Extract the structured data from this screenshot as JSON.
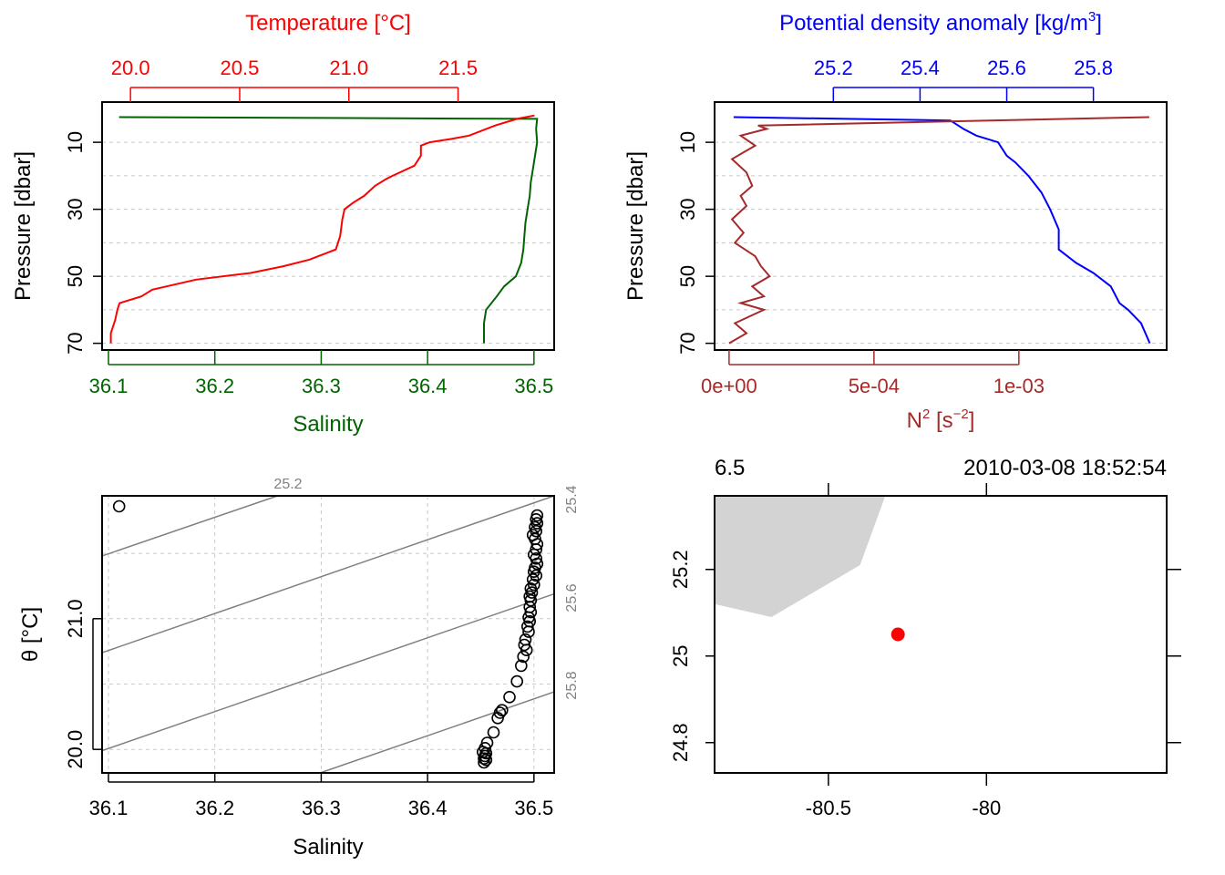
{
  "colors": {
    "temperature": "#ff0000",
    "salinity": "#006400",
    "density": "#0000ff",
    "n2": "#a52a2a",
    "isopycnal": "#808080",
    "land": "#d3d3d3",
    "station": "#ff0000",
    "grid": "#c8c8c8"
  },
  "panel1": {
    "top_label": "Temperature [°C]",
    "bottom_label": "Salinity",
    "left_label": "Pressure [dbar]"
  },
  "panel2": {
    "top_label_main": "Potential density anomaly [kg/m",
    "top_label_sup": "3",
    "top_label_end": "]",
    "bottom_label_main": "N",
    "bottom_label_sup": "2",
    "bottom_label_unit": " [s",
    "bottom_label_unit_sup": "−2",
    "bottom_label_end": "]",
    "left_label": "Pressure [dbar]"
  },
  "panel3": {
    "left_label": "θ [°C]",
    "bottom_label": "Salinity",
    "isopycnal_labels": [
      "25.2",
      "25.4",
      "25.6",
      "25.8"
    ]
  },
  "panel4": {
    "station": "6.5",
    "datetime": "2010-03-08 18:52:54"
  },
  "chart_data": [
    {
      "id": "profile_TS",
      "type": "line",
      "ylabel": "Pressure [dbar]",
      "y_axis": {
        "ticks": [
          10,
          30,
          50,
          70
        ],
        "range": [
          72,
          -2
        ],
        "reversed": true
      },
      "temperature_axis": {
        "label": "Temperature [°C]",
        "ticks": [
          "20.0",
          "20.5",
          "21.0",
          "21.5"
        ],
        "range": [
          19.87,
          21.94
        ]
      },
      "salinity_axis": {
        "label": "Salinity",
        "ticks": [
          "36.1",
          "36.2",
          "36.3",
          "36.4",
          "36.5"
        ],
        "range": [
          36.094,
          36.519
        ]
      },
      "series": [
        {
          "name": "Temperature",
          "axis": "temperature",
          "color": "#ff0000",
          "points": [
            [
              21.85,
              2
            ],
            [
              21.77,
              3
            ],
            [
              21.67,
              5
            ],
            [
              21.55,
              8
            ],
            [
              21.47,
              9
            ],
            [
              21.37,
              10
            ],
            [
              21.33,
              11
            ],
            [
              21.33,
              14
            ],
            [
              21.3,
              17
            ],
            [
              21.2,
              20
            ],
            [
              21.17,
              21
            ],
            [
              21.12,
              23
            ],
            [
              21.07,
              26
            ],
            [
              21.02,
              28
            ],
            [
              20.98,
              30
            ],
            [
              20.97,
              33
            ],
            [
              20.96,
              38
            ],
            [
              20.94,
              42
            ],
            [
              20.82,
              45
            ],
            [
              20.7,
              47
            ],
            [
              20.55,
              49
            ],
            [
              20.3,
              51
            ],
            [
              20.1,
              54
            ],
            [
              20.05,
              56
            ],
            [
              19.95,
              58
            ],
            [
              19.94,
              60
            ],
            [
              19.93,
              63
            ],
            [
              19.91,
              67
            ],
            [
              19.91,
              70
            ]
          ]
        },
        {
          "name": "Salinity",
          "axis": "salinity",
          "color": "#006400",
          "points": [
            [
              36.11,
              2.5
            ],
            [
              36.503,
              3
            ],
            [
              36.502,
              6
            ],
            [
              36.503,
              10
            ],
            [
              36.501,
              14
            ],
            [
              36.499,
              18
            ],
            [
              36.497,
              22
            ],
            [
              36.496,
              26
            ],
            [
              36.494,
              30
            ],
            [
              36.492,
              34
            ],
            [
              36.491,
              38
            ],
            [
              36.49,
              42
            ],
            [
              36.488,
              46
            ],
            [
              36.483,
              50
            ],
            [
              36.472,
              53
            ],
            [
              36.465,
              56
            ],
            [
              36.455,
              60
            ],
            [
              36.453,
              64
            ],
            [
              36.453,
              70
            ]
          ]
        }
      ]
    },
    {
      "id": "profile_density_N2",
      "type": "line",
      "ylabel": "Pressure [dbar]",
      "y_axis": {
        "ticks": [
          10,
          30,
          50,
          70
        ],
        "range": [
          72,
          -2
        ],
        "reversed": true
      },
      "density_axis": {
        "label": "Potential density anomaly [kg/m3]",
        "ticks": [
          "25.2",
          "25.4",
          "25.6",
          "25.8"
        ],
        "range": [
          24.926,
          25.969
        ]
      },
      "n2_axis": {
        "label": "N2 [s-2]",
        "ticks": [
          "0e+00",
          "5e-04",
          "1e-03"
        ],
        "range": [
          -5e-05,
          0.00151
        ]
      },
      "series": [
        {
          "name": "Potential density anomaly",
          "axis": "density",
          "color": "#0000ff",
          "points": [
            [
              24.97,
              2.5
            ],
            [
              25.47,
              3.5
            ],
            [
              25.5,
              6
            ],
            [
              25.53,
              8
            ],
            [
              25.58,
              10
            ],
            [
              25.6,
              14
            ],
            [
              25.62,
              16
            ],
            [
              25.65,
              20
            ],
            [
              25.68,
              25
            ],
            [
              25.7,
              30
            ],
            [
              25.72,
              36
            ],
            [
              25.72,
              42
            ],
            [
              25.76,
              46
            ],
            [
              25.8,
              49
            ],
            [
              25.84,
              53
            ],
            [
              25.86,
              58
            ],
            [
              25.88,
              60
            ],
            [
              25.91,
              64
            ],
            [
              25.93,
              70
            ]
          ]
        },
        {
          "name": "N2",
          "axis": "n2",
          "color": "#a52a2a",
          "points": [
            [
              0.00145,
              2.5
            ],
            [
              0.0001,
              5
            ],
            [
              0.00013,
              6
            ],
            [
              4e-05,
              8
            ],
            [
              9e-05,
              11
            ],
            [
              1e-05,
              15
            ],
            [
              6e-05,
              19
            ],
            [
              8e-05,
              23
            ],
            [
              4e-05,
              26
            ],
            [
              6e-05,
              29
            ],
            [
              1e-05,
              33
            ],
            [
              5e-05,
              37
            ],
            [
              2e-05,
              40
            ],
            [
              9e-05,
              44
            ],
            [
              0.00011,
              47
            ],
            [
              0.00014,
              50
            ],
            [
              8e-05,
              53
            ],
            [
              0.00012,
              56
            ],
            [
              4e-05,
              58
            ],
            [
              0.00012,
              60
            ],
            [
              2e-05,
              64
            ],
            [
              6e-05,
              67
            ],
            [
              0.0,
              70
            ]
          ]
        }
      ]
    },
    {
      "id": "TS_diagram",
      "type": "scatter",
      "xlabel": "Salinity",
      "ylabel": "θ [°C]",
      "x_axis": {
        "ticks": [
          "36.1",
          "36.2",
          "36.3",
          "36.4",
          "36.5"
        ],
        "range": [
          36.094,
          36.519
        ]
      },
      "y_axis": {
        "ticks": [
          "20.0",
          "21.0"
        ],
        "range": [
          19.82,
          21.94
        ]
      },
      "isopycnals": [
        {
          "label": "25.2",
          "line": [
            [
              36.094,
              21.48
            ],
            [
              36.259,
              21.94
            ]
          ]
        },
        {
          "label": "25.4",
          "line": [
            [
              36.094,
              20.74
            ],
            [
              36.519,
              21.94
            ]
          ]
        },
        {
          "label": "25.6",
          "line": [
            [
              36.094,
              19.99
            ],
            [
              36.519,
              21.19
            ]
          ]
        },
        {
          "label": "25.8",
          "line": [
            [
              36.299,
              19.82
            ],
            [
              36.519,
              20.44
            ]
          ]
        }
      ],
      "points": [
        [
          36.11,
          21.86
        ],
        [
          36.503,
          21.79
        ],
        [
          36.502,
          21.76
        ],
        [
          36.503,
          21.73
        ],
        [
          36.501,
          21.7
        ],
        [
          36.502,
          21.67
        ],
        [
          36.499,
          21.64
        ],
        [
          36.501,
          21.61
        ],
        [
          36.503,
          21.57
        ],
        [
          36.502,
          21.53
        ],
        [
          36.5,
          21.49
        ],
        [
          36.502,
          21.46
        ],
        [
          36.503,
          21.42
        ],
        [
          36.501,
          21.39
        ],
        [
          36.5,
          21.36
        ],
        [
          36.502,
          21.33
        ],
        [
          36.499,
          21.3
        ],
        [
          36.5,
          21.26
        ],
        [
          36.497,
          21.23
        ],
        [
          36.498,
          21.2
        ],
        [
          36.496,
          21.17
        ],
        [
          36.497,
          21.14
        ],
        [
          36.496,
          21.09
        ],
        [
          36.497,
          21.05
        ],
        [
          36.495,
          21.01
        ],
        [
          36.496,
          20.98
        ],
        [
          36.494,
          20.94
        ],
        [
          36.495,
          20.9
        ],
        [
          36.492,
          20.84
        ],
        [
          36.491,
          20.8
        ],
        [
          36.493,
          20.76
        ],
        [
          36.49,
          20.71
        ],
        [
          36.488,
          20.64
        ],
        [
          36.484,
          20.52
        ],
        [
          36.477,
          20.4
        ],
        [
          36.47,
          20.3
        ],
        [
          36.468,
          20.28
        ],
        [
          36.466,
          20.24
        ],
        [
          36.462,
          20.13
        ],
        [
          36.456,
          20.05
        ],
        [
          36.454,
          20.01
        ],
        [
          36.452,
          19.98
        ],
        [
          36.455,
          19.97
        ],
        [
          36.454,
          19.95
        ],
        [
          36.453,
          19.93
        ],
        [
          36.455,
          19.92
        ],
        [
          36.453,
          19.9
        ]
      ]
    },
    {
      "id": "station_map",
      "type": "scatter",
      "x_axis": {
        "ticks": [
          "-80.5",
          "-80"
        ],
        "range": [
          -80.86,
          -79.43
        ]
      },
      "y_axis": {
        "ticks": [
          "24.8",
          "25",
          "25.2"
        ],
        "range": [
          24.73,
          25.37
        ]
      },
      "land_polygon": [
        [
          -80.86,
          25.37
        ],
        [
          -80.32,
          25.37
        ],
        [
          -80.4,
          25.21
        ],
        [
          -80.68,
          25.09
        ],
        [
          -80.86,
          25.12
        ]
      ],
      "points": [
        [
          -80.28,
          25.05
        ]
      ]
    }
  ]
}
